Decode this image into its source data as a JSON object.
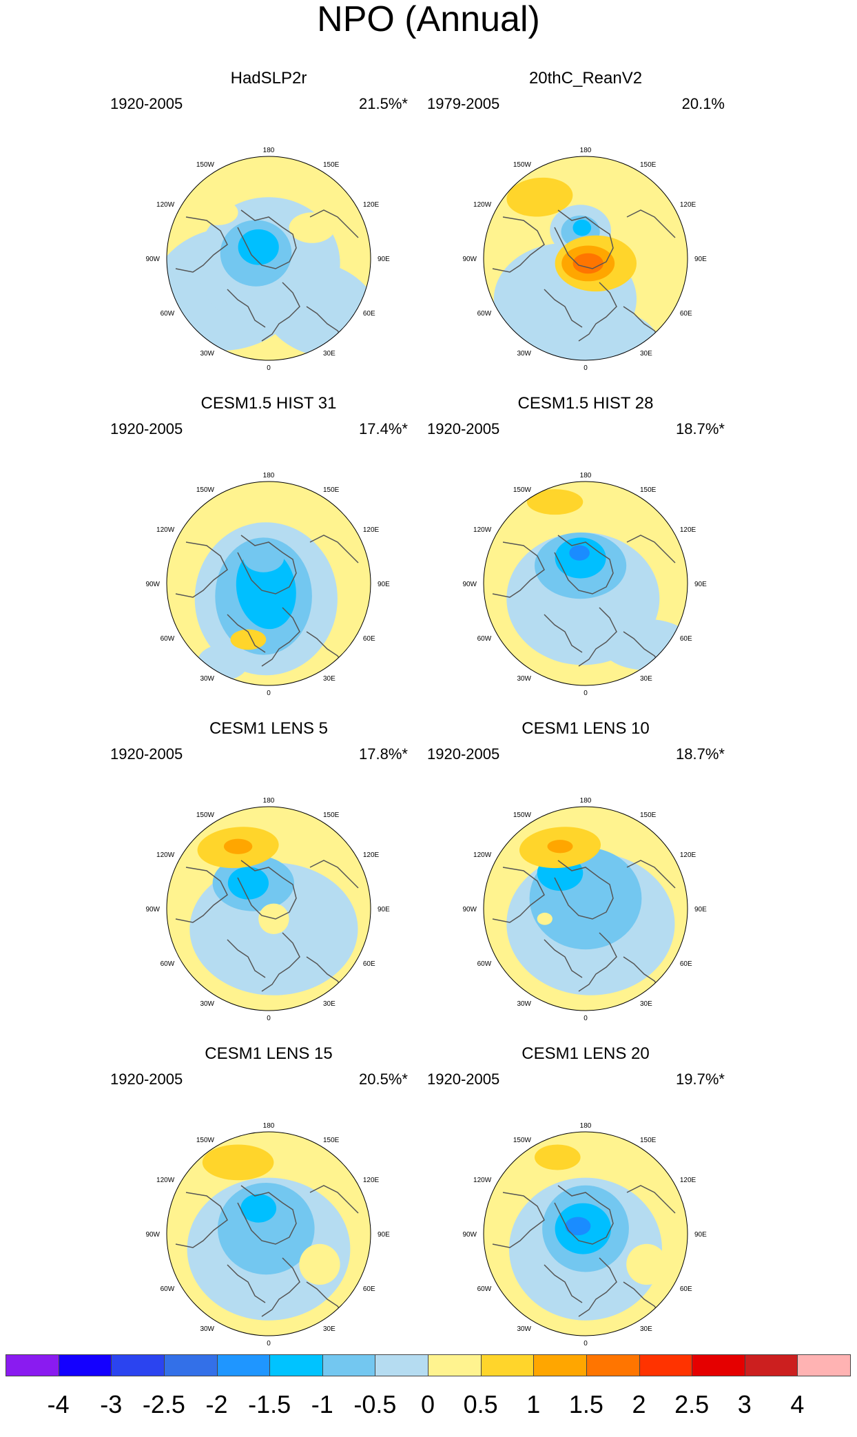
{
  "title": "NPO (Annual)",
  "colors": {
    "yellow": "#fff38f",
    "lightblue": "#b5dcf1",
    "blue1": "#73c7f0",
    "blue2": "#00bfff",
    "blue3": "#1a8cff",
    "blue4": "#3a63e6",
    "orange1": "#ffd52b",
    "orange2": "#ffa600",
    "orange3": "#ff7500",
    "coast": "#555555"
  },
  "map_labels": {
    "lon_180": "180",
    "lon_150w": "150W",
    "lon_150e": "150E",
    "lon_120w": "120W",
    "lon_120e": "120E",
    "lon_90w": "90W",
    "lon_90e": "90E",
    "lon_60w": "60W",
    "lon_60e": "60E",
    "lon_30w": "30W",
    "lon_30e": "30E",
    "lon_0": "0"
  },
  "panels": [
    {
      "title": "HadSLP2r",
      "period": "1920-2005",
      "variance": "21.5%*"
    },
    {
      "title": "20thC_ReanV2",
      "period": "1979-2005",
      "variance": "20.1%"
    },
    {
      "title": "CESM1.5 HIST 31",
      "period": "1920-2005",
      "variance": "17.4%*"
    },
    {
      "title": "CESM1.5 HIST 28",
      "period": "1920-2005",
      "variance": "18.7%*"
    },
    {
      "title": "CESM1 LENS 5",
      "period": "1920-2005",
      "variance": "17.8%*"
    },
    {
      "title": "CESM1 LENS 10",
      "period": "1920-2005",
      "variance": "18.7%*"
    },
    {
      "title": "CESM1 LENS 15",
      "period": "1920-2005",
      "variance": "20.5%*"
    },
    {
      "title": "CESM1 LENS 20",
      "period": "1920-2005",
      "variance": "19.7%*"
    }
  ],
  "colorbar": {
    "colors": [
      "#8a1bf0",
      "#1400ff",
      "#2b44f0",
      "#3370e8",
      "#1f96ff",
      "#00c3ff",
      "#73c7f0",
      "#b5dcf1",
      "#fff38f",
      "#ffd52b",
      "#ffa600",
      "#ff7500",
      "#ff3300",
      "#e50000",
      "#cc1f1f",
      "#ffb3b3"
    ],
    "labels": [
      "-4",
      "-3",
      "-2.5",
      "-2",
      "-1.5",
      "-1",
      "-0.5",
      "0",
      "0.5",
      "1",
      "1.5",
      "2",
      "2.5",
      "3",
      "4"
    ]
  }
}
